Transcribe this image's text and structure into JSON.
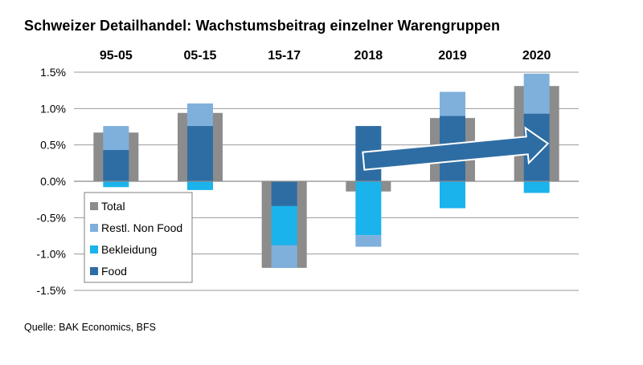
{
  "title": "Schweizer Detailhandel: Wachstumsbeitrag einzelner Warengruppen",
  "source": "Quelle: BAK Economics, BFS",
  "chart_data": {
    "type": "bar",
    "stacked": true,
    "categories": [
      "95-05",
      "05-15",
      "15-17",
      "2018",
      "2019",
      "2020"
    ],
    "category_labels_position": "top",
    "y_ticks": [
      "1.5%",
      "1.0%",
      "0.5%",
      "0.0%",
      "-0.5%",
      "-1.0%",
      "-1.5%"
    ],
    "ylim": [
      -1.5,
      1.5
    ],
    "y_unit": "%",
    "grid": true,
    "legend": {
      "position": "bottom-left"
    },
    "total": {
      "name": "Total",
      "color": "#8c8c8c",
      "values": [
        0.67,
        0.94,
        -1.19,
        -0.14,
        0.87,
        1.31
      ]
    },
    "series": [
      {
        "name": "Food",
        "color": "#2e6da4",
        "values": [
          0.43,
          0.76,
          -0.34,
          0.76,
          0.9,
          0.93
        ]
      },
      {
        "name": "Bekleidung",
        "color": "#1ab3ec",
        "values": [
          -0.08,
          -0.12,
          -0.54,
          -0.74,
          -0.37,
          -0.16
        ]
      },
      {
        "name": "Restl. Non Food",
        "color": "#7fb0dc",
        "values": [
          0.33,
          0.31,
          -0.31,
          -0.16,
          0.33,
          0.55
        ]
      }
    ],
    "legend_order": [
      "Total",
      "Restl. Non Food",
      "Bekleidung",
      "Food"
    ],
    "annotation": {
      "type": "arrow",
      "from_category": "2018",
      "to_category": "2020",
      "color": "#2e6da4",
      "meaning": "upward trend"
    }
  }
}
